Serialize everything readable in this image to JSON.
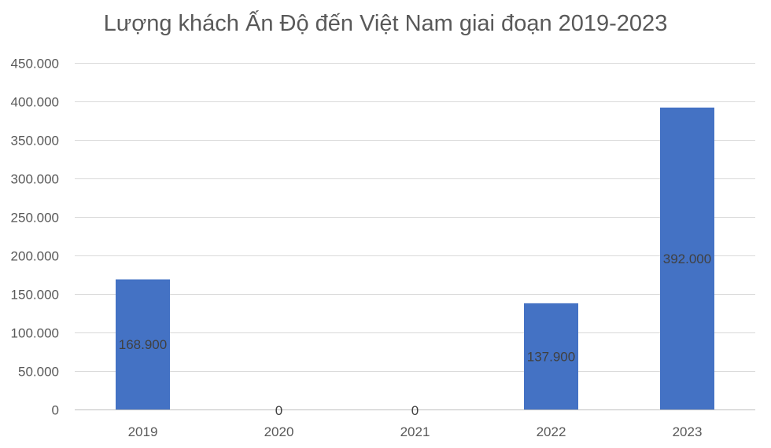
{
  "chart_data": {
    "type": "bar",
    "title": "Lượng khách Ấn Độ đến Việt Nam giai đoạn 2019-2023",
    "categories": [
      "2019",
      "2020",
      "2021",
      "2022",
      "2023"
    ],
    "values": [
      168900,
      0,
      0,
      137900,
      392000
    ],
    "data_labels": [
      "168.900",
      "0",
      "0",
      "137.900",
      "392.000"
    ],
    "y_ticks": [
      0,
      50000,
      100000,
      150000,
      200000,
      250000,
      300000,
      350000,
      400000,
      450000
    ],
    "y_tick_labels": [
      "0",
      "50.000",
      "100.000",
      "150.000",
      "200.000",
      "250.000",
      "300.000",
      "350.000",
      "400.000",
      "450.000"
    ],
    "ylim": [
      0,
      450000
    ],
    "xlabel": "",
    "ylabel": "",
    "grid": true,
    "legend": "none",
    "bar_color": "#4472C4",
    "grid_color": "#D9D9D9"
  }
}
